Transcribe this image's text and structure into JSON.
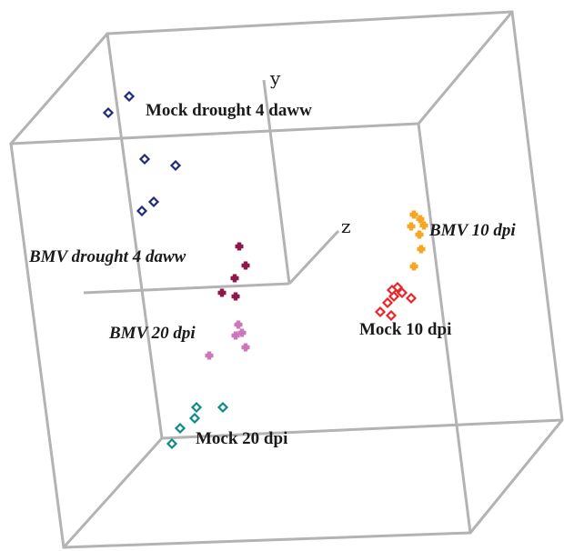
{
  "chart_data": {
    "type": "scatter",
    "title": "",
    "projection": "3d",
    "axes": [
      {
        "name": "y",
        "label": "y"
      },
      {
        "name": "z",
        "label": "z"
      }
    ],
    "grid": false,
    "series": [
      {
        "name": "Mock drought 4 daww",
        "label_style": "bold",
        "marker": "open-diamond",
        "color": "#1f2a7a",
        "points_2d": [
          [
            142,
            106
          ],
          [
            119,
            124
          ],
          [
            159,
            175
          ],
          [
            193,
            182
          ],
          [
            169,
            222
          ],
          [
            156,
            232
          ]
        ]
      },
      {
        "name": "BMV drought 4 daww",
        "label_style": "bold-italic",
        "marker": "filled-cross",
        "color": "#8b1a4b",
        "points_2d": [
          [
            263,
            271
          ],
          [
            270,
            292
          ],
          [
            258,
            306
          ],
          [
            244,
            322
          ],
          [
            259,
            326
          ]
        ]
      },
      {
        "name": "BMV 20 dpi",
        "label_style": "bold-italic",
        "marker": "filled-cross",
        "color": "#cc77bb",
        "points_2d": [
          [
            262,
            357
          ],
          [
            266,
            366
          ],
          [
            259,
            369
          ],
          [
            270,
            382
          ],
          [
            230,
            391
          ]
        ]
      },
      {
        "name": "Mock 20 dpi",
        "label_style": "bold",
        "marker": "open-diamond",
        "color": "#0f8a8a",
        "points_2d": [
          [
            216,
            448
          ],
          [
            245,
            448
          ],
          [
            214,
            460
          ],
          [
            198,
            471
          ],
          [
            189,
            488
          ]
        ]
      },
      {
        "name": "BMV 10 dpi",
        "label_style": "bold-italic",
        "marker": "filled-cross",
        "color": "#f5a623",
        "points_2d": [
          [
            455,
            236
          ],
          [
            462,
            241
          ],
          [
            452,
            249
          ],
          [
            466,
            248
          ],
          [
            461,
            258
          ],
          [
            463,
            274
          ],
          [
            455,
            293
          ]
        ]
      },
      {
        "name": "Mock 10 dpi",
        "label_style": "bold",
        "marker": "open-diamond",
        "color": "#e8262a",
        "points_2d": [
          [
            437,
            316
          ],
          [
            431,
            319
          ],
          [
            442,
            322
          ],
          [
            452,
            328
          ],
          [
            433,
            326
          ],
          [
            426,
            333
          ],
          [
            418,
            343
          ],
          [
            430,
            347
          ]
        ]
      }
    ]
  }
}
